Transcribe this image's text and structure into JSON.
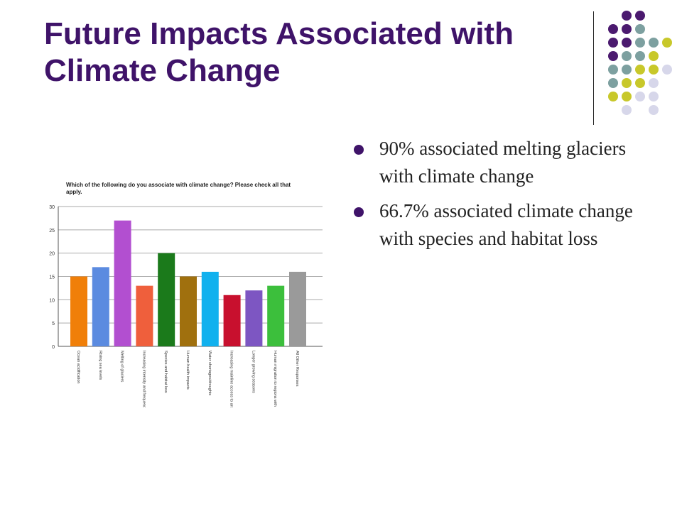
{
  "slide": {
    "title": "Future Impacts Associated with Climate Change",
    "bullets": [
      "90% associated melting glaciers with climate change",
      "66.7% associated climate change with species and habitat loss"
    ]
  },
  "colors": {
    "title": "#3f1369",
    "dot_purple": "#4b1a6f",
    "dot_teal": "#7da0a0",
    "dot_yellow": "#c8c82a",
    "dot_lavender": "#d7d7ea"
  },
  "chart_data": {
    "type": "bar",
    "title": "Which of the following do you associate with climate change? Please check all that apply.",
    "categories": [
      "Ocean acidification",
      "Rising sea levels",
      "Melting of glaciers",
      "Increasing intensity and frequency of storms",
      "Species and habitat loss",
      "Human health impacts",
      "Water shortages/droughts",
      "Increasing mainline access to arctic regions",
      "Longer growing seasons",
      "Human migration to regions with more water and better climate",
      "All Other Responses"
    ],
    "values": [
      15,
      17,
      27,
      13,
      20,
      15,
      16,
      11,
      12,
      13,
      16
    ],
    "colors": [
      "#f07f09",
      "#5b8be0",
      "#b24fd0",
      "#ef5f3c",
      "#1b7a1b",
      "#a0700e",
      "#11b1ee",
      "#c8102e",
      "#7d56c2",
      "#3cbf3c",
      "#9a9a9a"
    ],
    "ylim": [
      0,
      30
    ],
    "yticks": [
      0,
      5,
      10,
      15,
      20,
      25,
      30
    ],
    "grid": true
  }
}
